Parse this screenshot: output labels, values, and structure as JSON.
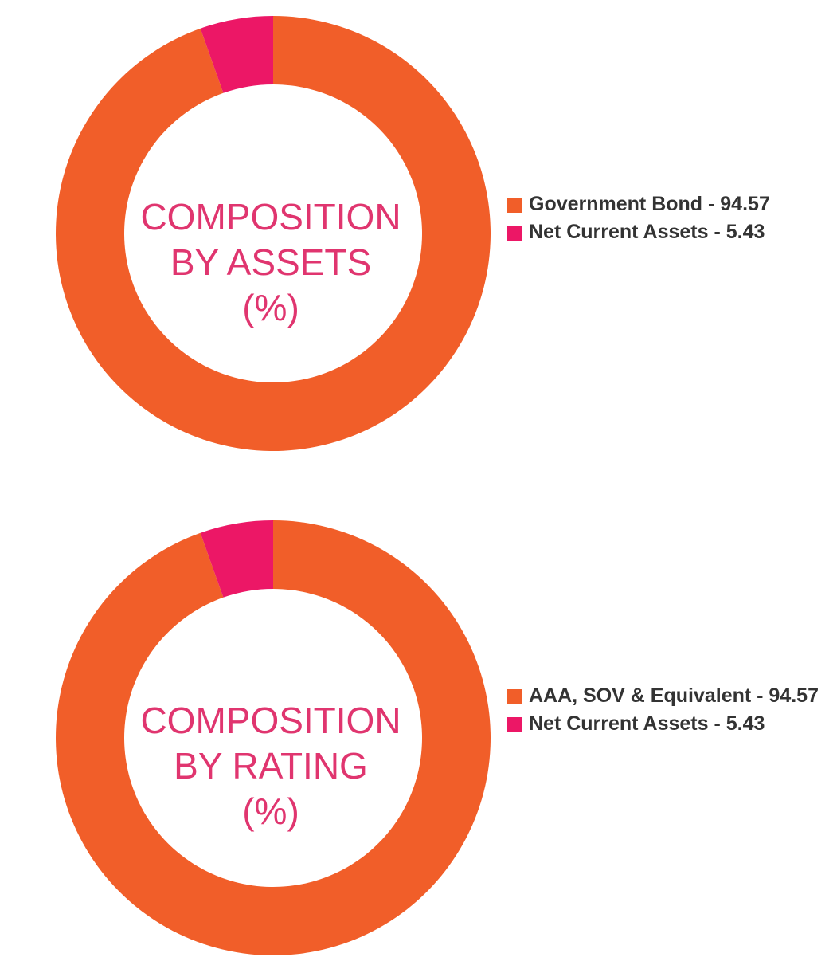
{
  "chart_data": [
    {
      "type": "pie",
      "title": [
        "COMPOSITION",
        "BY ASSETS",
        "(%)"
      ],
      "categories": [
        "Government Bond",
        "Net Current Assets"
      ],
      "values": [
        94.57,
        5.43
      ],
      "legend": [
        "Government Bond - 94.57",
        "Net Current Assets - 5.43"
      ],
      "colors": [
        "#f15e29",
        "#ec1766"
      ],
      "legend_position": "right"
    },
    {
      "type": "pie",
      "title": [
        "COMPOSITION",
        "BY RATING",
        "(%)"
      ],
      "categories": [
        "AAA, SOV & Equivalent",
        "Net Current Assets"
      ],
      "values": [
        94.57,
        5.43
      ],
      "legend": [
        "AAA, SOV & Equivalent - 94.57",
        "Net Current Assets - 5.43"
      ],
      "colors": [
        "#f15e29",
        "#ec1766"
      ],
      "legend_position": "right"
    }
  ]
}
